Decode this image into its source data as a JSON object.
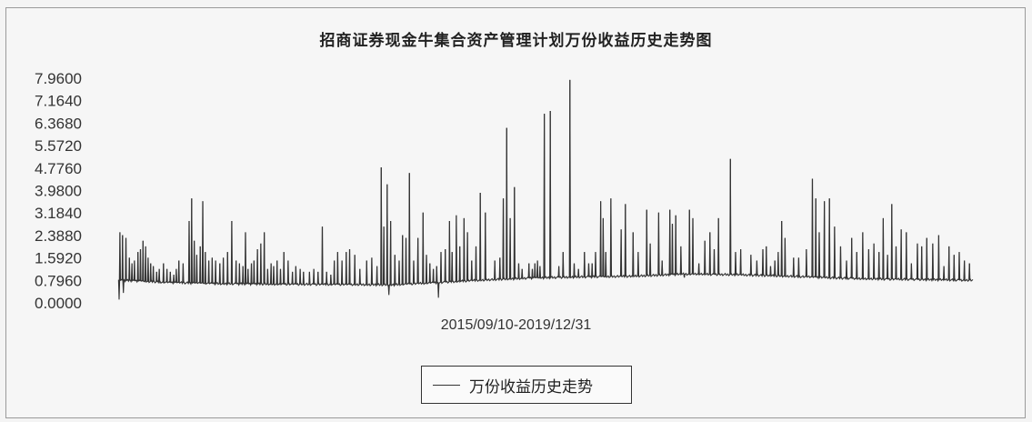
{
  "chart_data": {
    "type": "line",
    "title": "招商证券现金牛集合资产管理计划万份收益历史走势图",
    "xlabel": "2015/09/10-2019/12/31",
    "ylabel": "",
    "ylim": [
      0,
      7.96
    ],
    "yticks": [
      "7.9600",
      "7.1640",
      "6.3680",
      "5.5720",
      "4.7760",
      "3.9800",
      "3.1840",
      "2.3880",
      "1.5920",
      "0.7960",
      "0.0000"
    ],
    "grid": false,
    "legend_position": "bottom-center",
    "series": [
      {
        "name": "万份收益历史走势",
        "color": "#333333",
        "index_range": [
          0,
          1000
        ],
        "baseline": [
          [
            0,
            0.8
          ],
          [
            20,
            0.78
          ],
          [
            60,
            0.72
          ],
          [
            120,
            0.68
          ],
          [
            200,
            0.66
          ],
          [
            280,
            0.65
          ],
          [
            320,
            0.64
          ],
          [
            360,
            0.7
          ],
          [
            420,
            0.8
          ],
          [
            480,
            0.88
          ],
          [
            540,
            0.92
          ],
          [
            600,
            0.94
          ],
          [
            660,
            1.02
          ],
          [
            720,
            1.0
          ],
          [
            780,
            0.95
          ],
          [
            840,
            0.88
          ],
          [
            900,
            0.84
          ],
          [
            960,
            0.82
          ],
          [
            1000,
            0.8
          ]
        ],
        "dips": [
          [
            0,
            0.12
          ],
          [
            5,
            0.35
          ],
          [
            316,
            0.28
          ],
          [
            374,
            0.18
          ]
        ],
        "spikes": [
          [
            1,
            2.5
          ],
          [
            4,
            2.4
          ],
          [
            8,
            2.3
          ],
          [
            12,
            1.6
          ],
          [
            15,
            1.4
          ],
          [
            18,
            1.5
          ],
          [
            22,
            1.8
          ],
          [
            25,
            1.9
          ],
          [
            28,
            2.2
          ],
          [
            31,
            2.0
          ],
          [
            34,
            1.6
          ],
          [
            37,
            1.4
          ],
          [
            40,
            1.3
          ],
          [
            44,
            1.1
          ],
          [
            47,
            1.2
          ],
          [
            52,
            1.4
          ],
          [
            56,
            1.2
          ],
          [
            60,
            1.1
          ],
          [
            64,
            1.0
          ],
          [
            67,
            1.2
          ],
          [
            70,
            1.5
          ],
          [
            75,
            1.4
          ],
          [
            82,
            2.9
          ],
          [
            85,
            3.7
          ],
          [
            88,
            2.2
          ],
          [
            91,
            1.7
          ],
          [
            95,
            2.0
          ],
          [
            98,
            3.6
          ],
          [
            101,
            1.8
          ],
          [
            105,
            1.5
          ],
          [
            109,
            1.6
          ],
          [
            113,
            1.5
          ],
          [
            118,
            1.4
          ],
          [
            122,
            1.6
          ],
          [
            127,
            1.8
          ],
          [
            132,
            2.9
          ],
          [
            137,
            1.5
          ],
          [
            141,
            1.4
          ],
          [
            145,
            1.3
          ],
          [
            148,
            2.5
          ],
          [
            151,
            1.2
          ],
          [
            155,
            1.4
          ],
          [
            158,
            1.5
          ],
          [
            162,
            1.9
          ],
          [
            166,
            2.1
          ],
          [
            170,
            2.5
          ],
          [
            174,
            1.2
          ],
          [
            178,
            1.4
          ],
          [
            181,
            1.3
          ],
          [
            185,
            1.5
          ],
          [
            189,
            1.2
          ],
          [
            193,
            1.8
          ],
          [
            198,
            1.5
          ],
          [
            203,
            1.1
          ],
          [
            207,
            1.3
          ],
          [
            212,
            1.2
          ],
          [
            216,
            1.1
          ],
          [
            223,
            1.1
          ],
          [
            228,
            1.2
          ],
          [
            233,
            1.1
          ],
          [
            238,
            2.7
          ],
          [
            243,
            1.1
          ],
          [
            248,
            1.0
          ],
          [
            252,
            1.5
          ],
          [
            256,
            1.8
          ],
          [
            261,
            1.5
          ],
          [
            266,
            1.8
          ],
          [
            270,
            1.9
          ],
          [
            276,
            1.7
          ],
          [
            282,
            1.2
          ],
          [
            290,
            1.5
          ],
          [
            296,
            1.6
          ],
          [
            302,
            1.3
          ],
          [
            307,
            4.8
          ],
          [
            310,
            2.7
          ],
          [
            314,
            4.2
          ],
          [
            318,
            2.9
          ],
          [
            323,
            1.7
          ],
          [
            328,
            1.5
          ],
          [
            332,
            2.4
          ],
          [
            336,
            2.3
          ],
          [
            340,
            4.6
          ],
          [
            345,
            1.5
          ],
          [
            350,
            2.3
          ],
          [
            356,
            3.2
          ],
          [
            360,
            1.7
          ],
          [
            364,
            1.4
          ],
          [
            368,
            1.2
          ],
          [
            372,
            1.3
          ],
          [
            377,
            1.8
          ],
          [
            382,
            1.9
          ],
          [
            387,
            2.9
          ],
          [
            390,
            1.8
          ],
          [
            395,
            3.1
          ],
          [
            399,
            2.0
          ],
          [
            404,
            3.0
          ],
          [
            408,
            2.5
          ],
          [
            413,
            1.5
          ],
          [
            418,
            2.0
          ],
          [
            423,
            3.9
          ],
          [
            429,
            3.2
          ],
          [
            440,
            1.5
          ],
          [
            446,
            1.6
          ],
          [
            450,
            3.7
          ],
          [
            454,
            6.2
          ],
          [
            458,
            3.0
          ],
          [
            463,
            4.1
          ],
          [
            468,
            1.4
          ],
          [
            472,
            1.2
          ],
          [
            480,
            1.4
          ],
          [
            484,
            1.2
          ],
          [
            487,
            1.4
          ],
          [
            490,
            1.5
          ],
          [
            493,
            1.3
          ],
          [
            498,
            6.7
          ],
          [
            505,
            6.8
          ],
          [
            515,
            1.3
          ],
          [
            520,
            1.8
          ],
          [
            528,
            7.9
          ],
          [
            533,
            1.4
          ],
          [
            538,
            1.2
          ],
          [
            545,
            1.8
          ],
          [
            550,
            1.4
          ],
          [
            554,
            1.4
          ],
          [
            558,
            1.8
          ],
          [
            564,
            3.6
          ],
          [
            567,
            3.0
          ],
          [
            570,
            1.8
          ],
          [
            576,
            3.7
          ],
          [
            588,
            2.6
          ],
          [
            593,
            3.5
          ],
          [
            602,
            2.5
          ],
          [
            608,
            1.8
          ],
          [
            618,
            3.3
          ],
          [
            622,
            2.1
          ],
          [
            632,
            3.2
          ],
          [
            636,
            1.5
          ],
          [
            645,
            3.3
          ],
          [
            648,
            2.8
          ],
          [
            652,
            3.1
          ],
          [
            658,
            2.0
          ],
          [
            662,
            0.9
          ],
          [
            668,
            3.3
          ],
          [
            672,
            3.0
          ],
          [
            679,
            1.4
          ],
          [
            686,
            2.2
          ],
          [
            692,
            2.5
          ],
          [
            697,
            1.9
          ],
          [
            702,
            3.0
          ],
          [
            716,
            5.1
          ],
          [
            722,
            1.8
          ],
          [
            728,
            1.9
          ],
          [
            740,
            1.7
          ],
          [
            747,
            1.5
          ],
          [
            754,
            1.9
          ],
          [
            758,
            2.0
          ],
          [
            763,
            1.3
          ],
          [
            768,
            1.5
          ],
          [
            772,
            1.8
          ],
          [
            776,
            2.9
          ],
          [
            780,
            2.3
          ],
          [
            790,
            1.6
          ],
          [
            796,
            1.6
          ],
          [
            805,
            1.9
          ],
          [
            812,
            4.4
          ],
          [
            816,
            3.7
          ],
          [
            820,
            2.5
          ],
          [
            826,
            3.6
          ],
          [
            832,
            3.7
          ],
          [
            838,
            2.7
          ],
          [
            845,
            2.0
          ],
          [
            852,
            1.5
          ],
          [
            858,
            2.3
          ],
          [
            864,
            1.8
          ],
          [
            871,
            2.5
          ],
          [
            878,
            1.9
          ],
          [
            884,
            2.1
          ],
          [
            890,
            1.8
          ],
          [
            895,
            3.0
          ],
          [
            900,
            1.7
          ],
          [
            905,
            3.5
          ],
          [
            910,
            2.0
          ],
          [
            916,
            2.6
          ],
          [
            922,
            2.5
          ],
          [
            928,
            1.4
          ],
          [
            935,
            2.1
          ],
          [
            940,
            2.0
          ],
          [
            946,
            2.3
          ],
          [
            953,
            2.1
          ],
          [
            960,
            2.4
          ],
          [
            966,
            1.3
          ],
          [
            972,
            2.0
          ],
          [
            978,
            1.7
          ],
          [
            984,
            1.8
          ],
          [
            990,
            1.5
          ],
          [
            996,
            1.4
          ]
        ]
      }
    ]
  }
}
